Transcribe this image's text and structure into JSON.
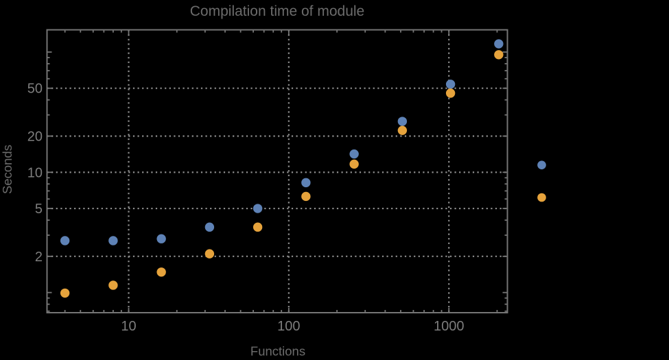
{
  "page": {
    "background": "#000000",
    "description_note": "log-log scatter plot, Mathematica-style frame, legend marker dots at right with no visible label text"
  },
  "colors": {
    "background": "#000000",
    "frame": "#757575",
    "gridline": "#8f8f8f",
    "tick_label": "#7d7d7d",
    "title_text": "#6b6b6b",
    "axis_label_text": "#6b6b6b",
    "series_blue": "#5e82b6",
    "series_orange": "#e6a33c"
  },
  "chart_data": {
    "type": "scatter",
    "title": "Compilation time of module",
    "xlabel": "Functions",
    "ylabel": "Seconds",
    "xscale": "log",
    "yscale": "log",
    "xlim": [
      3.09,
      2320
    ],
    "ylim": [
      0.68,
      153
    ],
    "grid": "dotted gridlines at labeled major ticks only",
    "legend_position": "outside right, marker swatches only (labels not visible on black background)",
    "x": [
      4,
      8,
      16,
      32,
      64,
      128,
      256,
      512,
      1024,
      2048
    ],
    "series": [
      {
        "name": "blue",
        "color": "#5e82b6",
        "values": [
          2.7,
          2.7,
          2.8,
          3.5,
          5.0,
          8.2,
          14.2,
          26.5,
          54,
          117
        ]
      },
      {
        "name": "orange",
        "color": "#e6a33c",
        "values": [
          0.99,
          1.15,
          1.48,
          2.1,
          3.5,
          6.3,
          11.7,
          22.3,
          45.5,
          95
        ]
      }
    ],
    "x_ticks": {
      "values": [
        10,
        100,
        1000
      ],
      "labels": [
        "10",
        "100",
        "1000"
      ]
    },
    "y_ticks": {
      "values": [
        2,
        5,
        10,
        20,
        50
      ],
      "labels": [
        "2",
        "5",
        "10",
        "20",
        "50"
      ]
    },
    "y_unlabeled_major_ticks": [
      1,
      100
    ],
    "minor_ticks": "log subdivisions 2-9 per decade on all four frame edges"
  }
}
